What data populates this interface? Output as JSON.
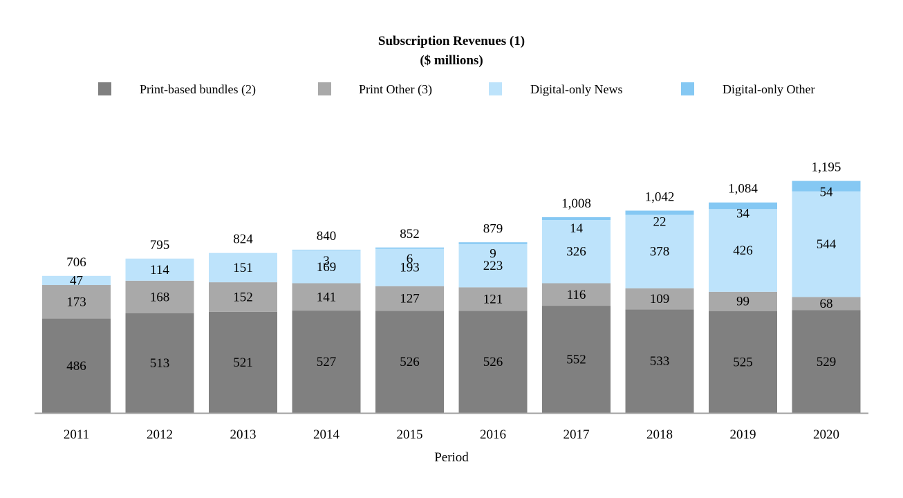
{
  "chart_data": {
    "type": "bar",
    "stacked": true,
    "title": "Subscription Revenues (1)",
    "subtitle": "($ millions)",
    "xlabel": "Period",
    "ylabel": "",
    "ylim": [
      0,
      1300
    ],
    "grid": false,
    "legend_placement": "top",
    "categories": [
      "2011",
      "2012",
      "2013",
      "2014",
      "2015",
      "2016",
      "2017",
      "2018",
      "2019",
      "2020"
    ],
    "series": [
      {
        "name": "Print-based bundles (2)",
        "color": "#808080",
        "values": [
          486,
          513,
          521,
          527,
          526,
          526,
          552,
          533,
          525,
          529
        ]
      },
      {
        "name": "Print Other (3)",
        "color": "#a9a9a9",
        "values": [
          173,
          168,
          152,
          141,
          127,
          121,
          116,
          109,
          99,
          68
        ]
      },
      {
        "name": "Digital-only News",
        "color": "#bde3fb",
        "values": [
          47,
          114,
          151,
          169,
          193,
          223,
          326,
          378,
          426,
          544
        ]
      },
      {
        "name": "Digital-only Other",
        "color": "#85c8f3",
        "values": [
          null,
          null,
          null,
          3,
          6,
          9,
          14,
          22,
          34,
          54
        ]
      }
    ],
    "totals": [
      "706",
      "795",
      "824",
      "840",
      "852",
      "879",
      "1,008",
      "1,042",
      "1,084",
      "1,195"
    ]
  }
}
